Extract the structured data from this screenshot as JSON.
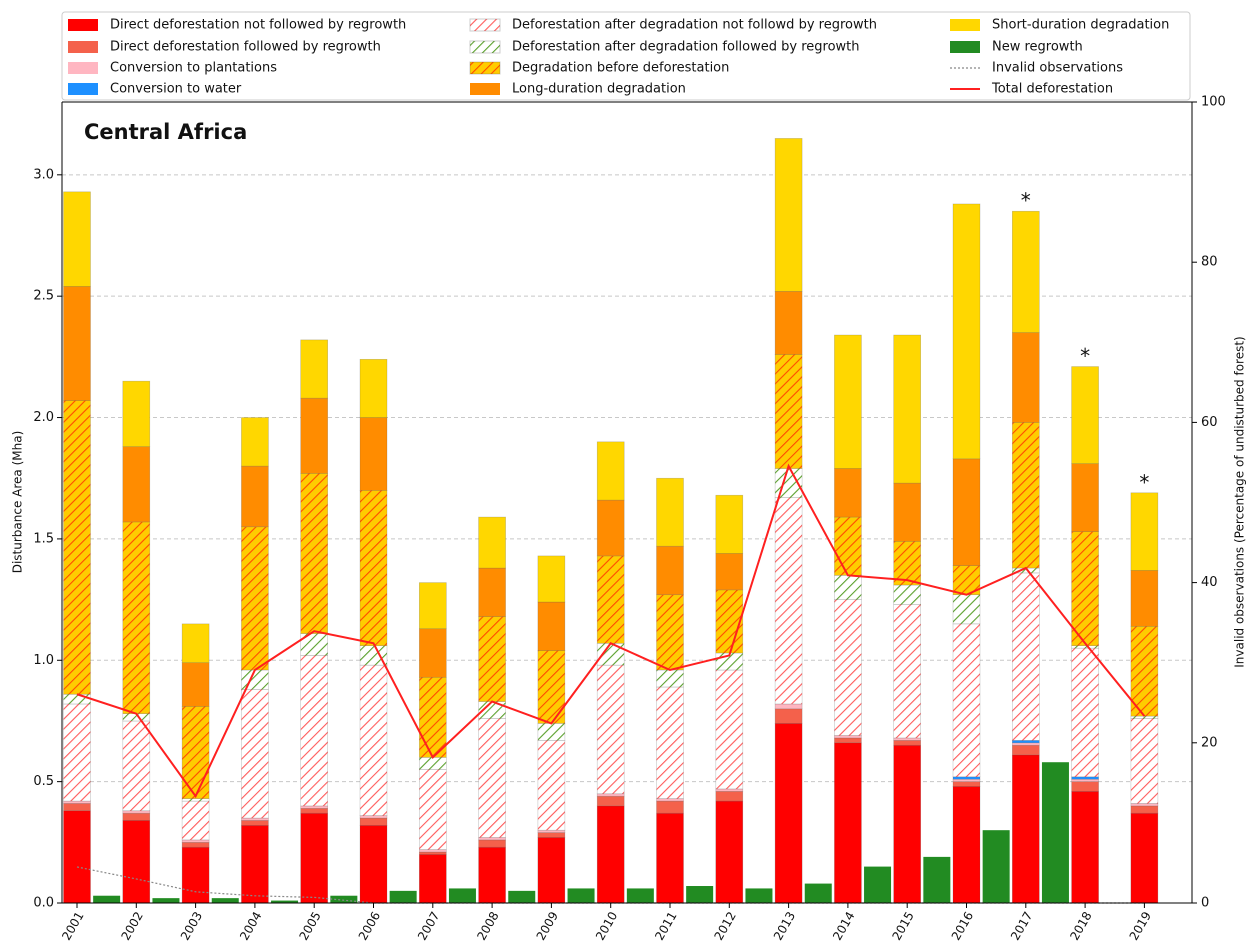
{
  "chart_data": {
    "type": "bar",
    "title": "Central Africa",
    "ylabel": "Disturbance Area (Mha)",
    "y2label": "Invalid observations (Percentage of undisturbed forest)",
    "categories": [
      "2001",
      "2002",
      "2003",
      "2004",
      "2005",
      "2006",
      "2007",
      "2008",
      "2009",
      "2010",
      "2011",
      "2012",
      "2013",
      "2014",
      "2015",
      "2016",
      "2017",
      "2018",
      "2019"
    ],
    "ylim": [
      0,
      3.3
    ],
    "yticks": [
      {
        "value": 0,
        "label": "0.0"
      },
      0.5,
      {
        "value": 1,
        "label": "1.0"
      },
      1.5,
      {
        "value": 2,
        "label": "2.0"
      },
      2.5,
      {
        "value": 3,
        "label": "3.0"
      }
    ],
    "y2lim": [
      0,
      100
    ],
    "y2ticks": [
      0,
      20,
      40,
      60,
      80,
      100
    ],
    "grid": true,
    "series": [
      {
        "name": "Direct deforestation not followed by regrowth",
        "color": "#ff0000",
        "stacked": true,
        "values": [
          0.38,
          0.34,
          0.23,
          0.32,
          0.37,
          0.32,
          0.2,
          0.23,
          0.27,
          0.4,
          0.37,
          0.42,
          0.74,
          0.66,
          0.65,
          0.48,
          0.61,
          0.46,
          0.37
        ]
      },
      {
        "name": "Direct deforestation followed by regrowth",
        "color": "#f4614b",
        "stacked": true,
        "values": [
          0.03,
          0.03,
          0.02,
          0.02,
          0.02,
          0.03,
          0.01,
          0.03,
          0.02,
          0.04,
          0.05,
          0.04,
          0.06,
          0.02,
          0.02,
          0.02,
          0.04,
          0.04,
          0.03
        ]
      },
      {
        "name": "Conversion to plantations",
        "color": "#ffb6c1",
        "stacked": true,
        "values": [
          0.01,
          0.01,
          0.01,
          0.01,
          0.01,
          0.01,
          0.01,
          0.01,
          0.01,
          0.01,
          0.01,
          0.01,
          0.02,
          0.01,
          0.01,
          0.01,
          0.01,
          0.01,
          0.01
        ]
      },
      {
        "name": "Conversion to water",
        "color": "#1e90ff",
        "stacked": true,
        "values": [
          0,
          0,
          0,
          0,
          0,
          0,
          0,
          0,
          0,
          0,
          0,
          0,
          0,
          0,
          0,
          0.01,
          0.01,
          0.01,
          0
        ]
      },
      {
        "name": "Deforestation after degradation not followd by regrowth",
        "color": "#ffffff",
        "hatch": "#ff5a5a",
        "stacked": true,
        "values": [
          0.4,
          0.37,
          0.16,
          0.53,
          0.62,
          0.62,
          0.33,
          0.49,
          0.37,
          0.53,
          0.46,
          0.49,
          0.85,
          0.56,
          0.55,
          0.63,
          0.69,
          0.53,
          0.35
        ]
      },
      {
        "name": "Deforestation after degradation followed by regrowth",
        "color": "#ffffff",
        "hatch": "#5aa02c",
        "stacked": true,
        "values": [
          0.04,
          0.03,
          0.01,
          0.08,
          0.09,
          0.08,
          0.05,
          0.07,
          0.07,
          0.09,
          0.07,
          0.07,
          0.12,
          0.1,
          0.08,
          0.12,
          0.02,
          0.01,
          0.01
        ]
      },
      {
        "name": "Degradation before deforestation",
        "color": "#ffcc00",
        "hatch": "#ff4a00",
        "stacked": true,
        "values": [
          1.21,
          0.79,
          0.38,
          0.59,
          0.66,
          0.64,
          0.33,
          0.35,
          0.3,
          0.36,
          0.31,
          0.26,
          0.47,
          0.24,
          0.18,
          0.12,
          0.6,
          0.47,
          0.37
        ]
      },
      {
        "name": "Long-duration degradation",
        "color": "#ff8c00",
        "stacked": true,
        "values": [
          0.47,
          0.31,
          0.18,
          0.25,
          0.31,
          0.3,
          0.2,
          0.2,
          0.2,
          0.23,
          0.2,
          0.15,
          0.26,
          0.2,
          0.24,
          0.44,
          0.37,
          0.28,
          0.23
        ]
      },
      {
        "name": "Short-duration degradation",
        "color": "#ffd700",
        "stacked": true,
        "values": [
          0.39,
          0.27,
          0.16,
          0.2,
          0.24,
          0.24,
          0.19,
          0.21,
          0.19,
          0.24,
          0.28,
          0.24,
          0.63,
          0.55,
          0.61,
          1.05,
          0.5,
          0.4,
          0.32
        ]
      },
      {
        "name": "New regrowth",
        "color": "#228b22",
        "stacked": false,
        "values": [
          0.03,
          0.02,
          0.02,
          0.01,
          0.03,
          0.05,
          0.06,
          0.05,
          0.06,
          0.06,
          0.07,
          0.06,
          0.08,
          0.15,
          0.19,
          0.3,
          0.58,
          null,
          null
        ]
      },
      {
        "name": "Invalid observations",
        "color": "#888888",
        "type": "line",
        "style": "dotted",
        "axis": "y2",
        "values": [
          4.5,
          3.0,
          1.4,
          0.9,
          0.7,
          0,
          0,
          0,
          0,
          0,
          0,
          0,
          0,
          0,
          0,
          0,
          0,
          0,
          0
        ]
      },
      {
        "name": "Total deforestation",
        "color": "#ff2020",
        "type": "line",
        "style": "solid",
        "values": [
          0.86,
          0.78,
          0.44,
          0.96,
          1.12,
          1.07,
          0.6,
          0.83,
          0.74,
          1.07,
          0.96,
          1.02,
          1.8,
          1.35,
          1.33,
          1.27,
          1.38,
          1.07,
          0.77
        ]
      }
    ],
    "annotations": [
      {
        "text": "*",
        "x": "2017"
      },
      {
        "text": "*",
        "x": "2018"
      },
      {
        "text": "*",
        "x": "2019"
      }
    ]
  }
}
